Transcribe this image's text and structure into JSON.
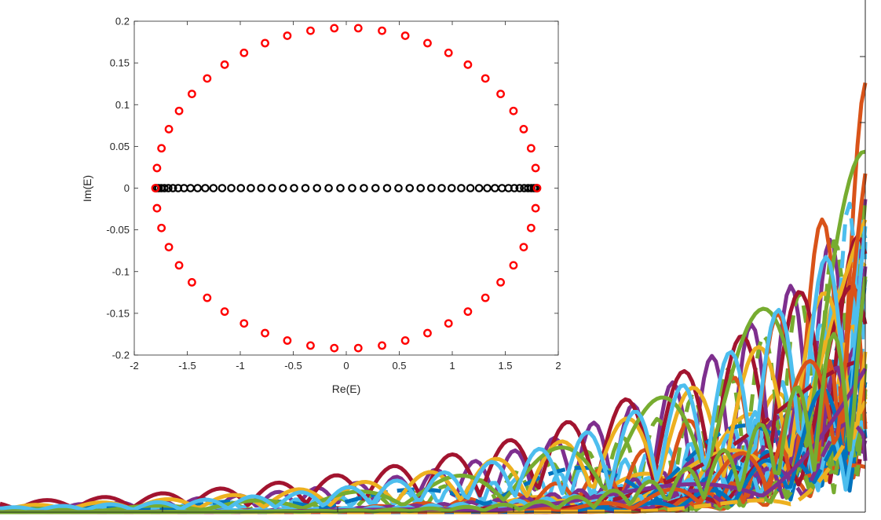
{
  "chart_data": [
    {
      "type": "line",
      "title": "",
      "xlabel": "",
      "ylabel": "",
      "x_range": [
        0,
        1
      ],
      "y_range": [
        0,
        1
      ],
      "grid": false,
      "legend": "none",
      "series_count": 40,
      "series_colors": [
        "#0072bd",
        "#d95319",
        "#edb120",
        "#7e2f8e",
        "#77ac30",
        "#4dbeee",
        "#a2142f"
      ],
      "line_styles": [
        "solid",
        "dashed"
      ],
      "description_of_values": "dense family of positive curves, flat near 0 on the left, rising and oscillating sharply toward the right edge"
    },
    {
      "type": "scatter",
      "title": "",
      "xlabel": "Re(E)",
      "ylabel": "Im(E)",
      "xlim": [
        -2,
        2
      ],
      "ylim": [
        -0.2,
        0.2
      ],
      "xticks": [
        "-2",
        "-1.5",
        "-1",
        "-0.5",
        "0",
        "0.5",
        "1",
        "1.5",
        "2"
      ],
      "yticks": [
        "-0.2",
        "-0.15",
        "-0.1",
        "-0.05",
        "0",
        "0.05",
        "0.1",
        "0.15",
        "0.2"
      ],
      "grid": false,
      "series": [
        {
          "color": "#ff0000",
          "marker": "circle-open",
          "shape": "ellipse",
          "center": [
            0,
            0
          ],
          "semi_axis_re": 1.8,
          "semi_axis_im": 0.192,
          "count": 50
        },
        {
          "color": "#000000",
          "marker": "circle-open",
          "shape": "real-segment",
          "re_range": [
            -1.8,
            1.8
          ],
          "im": 0,
          "count": 50
        }
      ]
    }
  ]
}
